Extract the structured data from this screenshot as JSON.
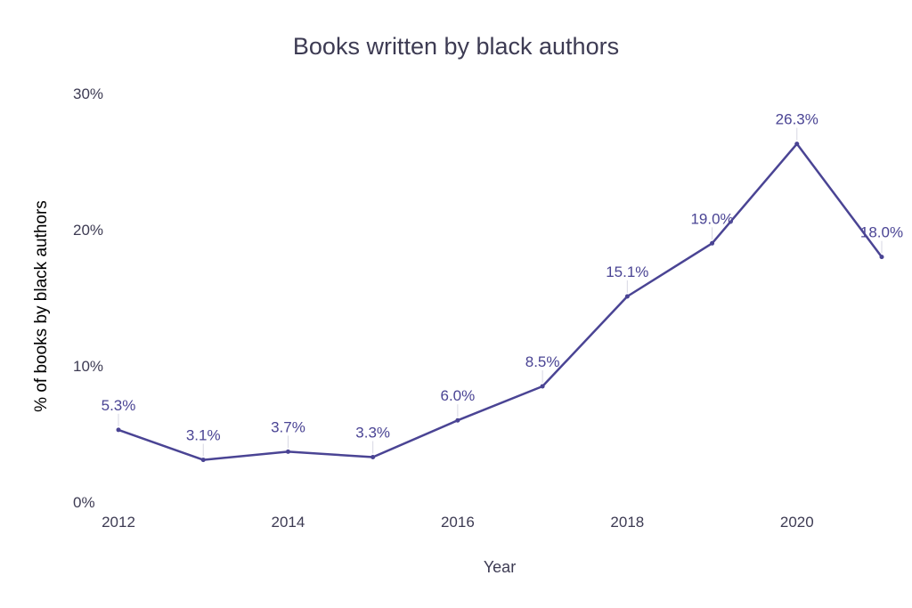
{
  "chart_data": {
    "type": "line",
    "title": "Books written by black authors",
    "xlabel": "Year",
    "ylabel": "% of books by black authors",
    "x": [
      2012,
      2013,
      2014,
      2015,
      2016,
      2017,
      2018,
      2019,
      2020,
      2021
    ],
    "series": [
      {
        "values": [
          5.3,
          3.1,
          3.7,
          3.3,
          6.0,
          8.5,
          15.1,
          19.0,
          26.3,
          18.0
        ],
        "labels": [
          "5.3%",
          "3.1%",
          "3.7%",
          "3.3%",
          "6.0%",
          "8.5%",
          "15.1%",
          "19.0%",
          "26.3%",
          "18.0%"
        ]
      }
    ],
    "xticks": [
      2012,
      2014,
      2016,
      2018,
      2020
    ],
    "xtick_labels": [
      "2012",
      "2014",
      "2016",
      "2018",
      "2020"
    ],
    "yticks": [
      0,
      10,
      20,
      30
    ],
    "ytick_labels": [
      "0%",
      "10%",
      "20%",
      "30%"
    ],
    "xlim": [
      2012,
      2021
    ],
    "ylim": [
      0,
      30
    ],
    "grid": false,
    "legend": "none",
    "colors": {
      "line": "#4a4494",
      "text": "#3d3b53",
      "leader": "#d7d7e3"
    }
  }
}
